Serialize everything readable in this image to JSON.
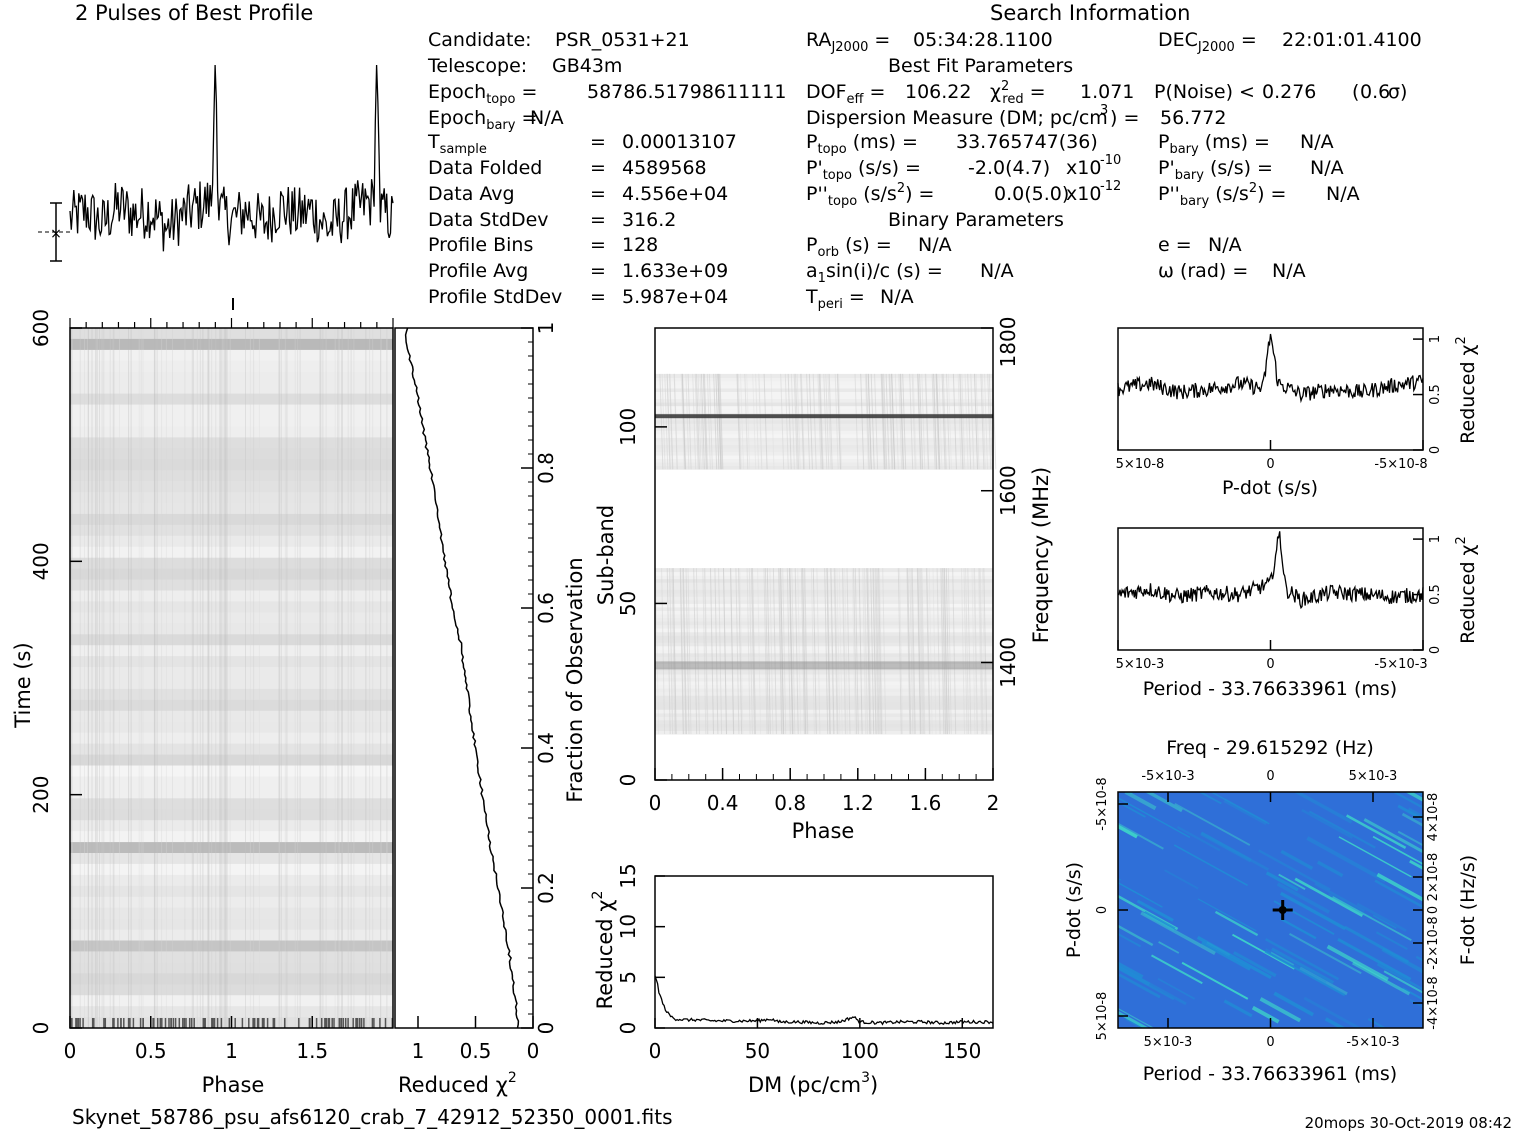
{
  "header": {
    "profile_title": "2 Pulses of Best Profile",
    "search_title": "Search Information",
    "best_fit_title": "Best Fit Parameters",
    "binary_title": "Binary Parameters",
    "filename": "Skynet_58786_psu_afs6120_crab_7_42912_52350_0001.fits",
    "footer_right": "20mops 30-Oct-2019 08:42"
  },
  "info": {
    "candidate_label": "Candidate:",
    "candidate": "PSR_0531+21",
    "telescope_label": "Telescope:",
    "telescope": "GB43m",
    "epoch_topo": "58786.51798611111",
    "epoch_bary": "N/A",
    "t_sample": "0.00013107",
    "data_folded_label": "Data Folded",
    "data_folded": "4589568",
    "data_avg_label": "Data Avg",
    "data_avg": "4.556e+04",
    "data_stddev_label": "Data StdDev",
    "data_stddev": "316.2",
    "profile_bins_label": "Profile Bins",
    "profile_bins": "128",
    "profile_avg_label": "Profile Avg",
    "profile_avg": "1.633e+09",
    "profile_stddev_label": "Profile StdDev",
    "profile_stddev": "5.987e+04",
    "ra": "05:34:28.1100",
    "dec": "22:01:01.4100",
    "dof_eff": "106.22",
    "chi2_red": "1.071",
    "p_noise": "0.276",
    "sigma": "0.6",
    "dm_label": "Dispersion Measure (DM; pc/cm",
    "dm": "56.772",
    "p_topo": "33.765747(36)",
    "pd_topo": "-2.0(4.7)",
    "pd_exp": "-10",
    "pdd_topo": "0.0(5.0)",
    "pdd_exp": "-12",
    "p_bary": "N/A",
    "pd_bary": "N/A",
    "pdd_bary": "N/A",
    "p_orb": "N/A",
    "a1sini": "N/A",
    "t_peri": "N/A",
    "ecc": "N/A",
    "omega": "N/A"
  },
  "axes": {
    "time_label": "Time (s)",
    "phase_label": "Phase",
    "reduced_chi2": "Reduced",
    "fraction_label": "Fraction of Observation",
    "subband_label": "Sub-band",
    "frequency_label": "Frequency (MHz)",
    "dm_axis_label": "DM (pc/cm",
    "pdot_label": "P-dot (s/s)",
    "period_label": "Period - 33.76633961 (ms)",
    "freq_title": "Freq - 29.615292 (Hz)",
    "fdot_label": "F-dot (Hz/s)"
  },
  "colors": {
    "ink": "#000000",
    "grey_image": "#9a9a9a",
    "ppdot_bg": "#2f6fd8",
    "ppdot_hi": "#3fe0c8"
  },
  "chart_data": [
    {
      "type": "line",
      "name": "pulse_profile",
      "title": "2 Pulses of Best Profile",
      "x": [
        0.0,
        0.1,
        0.2,
        0.3,
        0.4,
        0.5,
        0.6,
        0.7,
        0.8,
        0.88,
        0.9,
        0.92,
        1.0,
        1.1,
        1.2,
        1.3,
        1.4,
        1.5,
        1.6,
        1.7,
        1.8,
        1.88,
        1.9,
        1.92,
        2.0
      ],
      "values": [
        0.0,
        0.2,
        -0.1,
        0.3,
        0.1,
        0.2,
        -0.2,
        0.1,
        0.3,
        0.4,
        3.6,
        0.2,
        0.0,
        0.2,
        -0.1,
        0.3,
        0.1,
        0.2,
        -0.2,
        0.1,
        0.3,
        0.4,
        3.6,
        0.2,
        0.0
      ],
      "xlim": [
        0,
        2
      ]
    },
    {
      "type": "heatmap",
      "name": "time_vs_phase",
      "xlabel": "Phase",
      "ylabel": "Time (s)",
      "xlim": [
        0,
        2
      ],
      "ylim": [
        0,
        600
      ],
      "xticks": [
        "0",
        "0.5",
        "1",
        "1.5"
      ],
      "yticks": [
        "0",
        "200",
        "400",
        "600"
      ]
    },
    {
      "type": "line",
      "name": "time_reduced_chi2",
      "xlabel": "Reduced χ2",
      "ylabel": "Fraction of Observation",
      "xlim": [
        1.2,
        0
      ],
      "ylim": [
        0,
        1
      ],
      "xticks": [
        "1",
        "0.5",
        "0"
      ],
      "yticks": [
        "0",
        "0.2",
        "0.4",
        "0.6",
        "0.8",
        "1"
      ],
      "x": [
        0.13,
        0.14,
        0.16,
        0.2,
        0.25,
        0.3,
        0.36,
        0.43,
        0.5,
        0.57,
        0.63,
        0.72,
        0.8,
        0.87,
        0.95,
        1.0,
        1.05,
        1.1,
        1.1
      ],
      "y": [
        0.0,
        0.02,
        0.05,
        0.1,
        0.15,
        0.2,
        0.25,
        0.32,
        0.4,
        0.48,
        0.55,
        0.62,
        0.7,
        0.78,
        0.85,
        0.9,
        0.94,
        0.98,
        1.0
      ]
    },
    {
      "type": "heatmap",
      "name": "subband_vs_phase",
      "xlabel": "Phase",
      "ylabel": "Sub-band",
      "y2label": "Frequency (MHz)",
      "xlim": [
        0,
        2
      ],
      "ylim": [
        0,
        128
      ],
      "xticks": [
        "0",
        "0.4",
        "0.8",
        "1.2",
        "1.6",
        "2"
      ],
      "yticks": [
        "0",
        "50",
        "100"
      ],
      "y2ticks": [
        "1400",
        "1600",
        "1800"
      ],
      "bands": [
        {
          "from": 13,
          "to": 60
        },
        {
          "from": 88,
          "to": 115
        }
      ],
      "bright_subbands": [
        103,
        33
      ]
    },
    {
      "type": "line",
      "name": "dm_reduced_chi2",
      "xlabel": "DM (pc/cm3)",
      "ylabel": "Reduced χ2",
      "xlim": [
        0,
        165
      ],
      "ylim": [
        0,
        15
      ],
      "xticks": [
        "0",
        "50",
        "100",
        "150"
      ],
      "yticks": [
        "0",
        "5",
        "10",
        "15"
      ],
      "x": [
        0,
        1,
        2,
        4,
        6,
        8,
        10,
        15,
        20,
        30,
        40,
        50,
        56.8,
        60,
        70,
        80,
        90,
        97,
        100,
        110,
        120,
        130,
        140,
        150,
        160,
        165
      ],
      "values": [
        5.0,
        4.6,
        3.5,
        2.3,
        1.5,
        1.1,
        0.9,
        0.8,
        0.8,
        0.7,
        0.7,
        0.7,
        0.9,
        0.6,
        0.6,
        0.5,
        0.6,
        1.1,
        0.6,
        0.5,
        0.6,
        0.6,
        0.5,
        0.6,
        0.6,
        0.6
      ]
    },
    {
      "type": "line",
      "name": "pdot_reduced_chi2",
      "xlabel": "P-dot (s/s)",
      "ylabel": "Reduced χ2",
      "xticks": [
        "5×10-8",
        "0",
        "-5×10-8"
      ],
      "yticks": [
        "0",
        "0.5",
        "1"
      ],
      "ylim": [
        0,
        1.1
      ],
      "x": [
        -1.0,
        -0.8,
        -0.6,
        -0.4,
        -0.2,
        -0.05,
        0.0,
        0.05,
        0.2,
        0.4,
        0.6,
        0.8,
        1.0
      ],
      "values": [
        0.55,
        0.6,
        0.52,
        0.55,
        0.6,
        0.55,
        1.05,
        0.6,
        0.5,
        0.55,
        0.52,
        0.58,
        0.62
      ]
    },
    {
      "type": "line",
      "name": "period_reduced_chi2",
      "xlabel": "Period - 33.76633961 (ms)",
      "ylabel": "Reduced χ2",
      "xticks": [
        "5×10-3",
        "0",
        "-5×10-3"
      ],
      "yticks": [
        "0",
        "0.5",
        "1"
      ],
      "ylim": [
        0,
        1.1
      ],
      "x": [
        -1.0,
        -0.8,
        -0.6,
        -0.4,
        -0.2,
        0.0,
        0.06,
        0.1,
        0.2,
        0.4,
        0.6,
        0.8,
        1.0
      ],
      "values": [
        0.5,
        0.55,
        0.48,
        0.52,
        0.5,
        0.6,
        1.05,
        0.55,
        0.45,
        0.52,
        0.5,
        0.48,
        0.5
      ]
    },
    {
      "type": "heatmap",
      "name": "p_pdot_plane",
      "title": "Freq - 29.615292 (Hz)",
      "xlabel": "Period - 33.76633961 (ms)",
      "ylabel": "P-dot (s/s)",
      "y2label": "F-dot (Hz/s)",
      "xticks": [
        "5×10-3",
        "0",
        "-5×10-3"
      ],
      "x2ticks": [
        "-5×10-3",
        "0",
        "5×10-3"
      ],
      "yticks": [
        "-5×10-8",
        "0",
        "5×10-8"
      ],
      "y2ticks": [
        "4×10-8",
        "2×10-8",
        "0",
        "-2×10-8",
        "-4×10-8"
      ]
    }
  ]
}
